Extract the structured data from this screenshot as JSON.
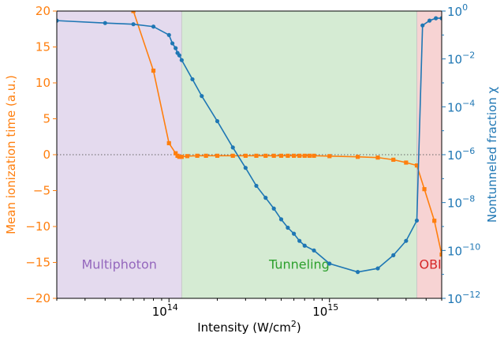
{
  "chart_data": {
    "type": "line",
    "xlabel": "Intensity (W/cm²)",
    "ylabel_left": "Mean ionization time (a.u.)",
    "ylabel_right": "Nontunneled fraction χ",
    "x_scale": "log",
    "xlim": [
      20000000000000.0,
      5000000000000000.0
    ],
    "x_ticks": [
      {
        "value": 100000000000000.0,
        "label": "10",
        "exp": "14"
      },
      {
        "value": 1000000000000000.0,
        "label": "10",
        "exp": "15"
      }
    ],
    "ylim_left": [
      -20,
      20
    ],
    "y_ticks_left": [
      "−20",
      "−15",
      "−10",
      "−5",
      "0",
      "5",
      "10",
      "15",
      "20"
    ],
    "y_tick_values_left": [
      -20,
      -15,
      -10,
      -5,
      0,
      5,
      10,
      15,
      20
    ],
    "ylim_right_log10": [
      -12,
      0
    ],
    "y_ticks_right": [
      {
        "log10": 0,
        "label": "10",
        "exp": "0"
      },
      {
        "log10": -2,
        "label": "10",
        "exp": "−2"
      },
      {
        "log10": -4,
        "label": "10",
        "exp": "−4"
      },
      {
        "log10": -6,
        "label": "10",
        "exp": "−6"
      },
      {
        "log10": -8,
        "label": "10",
        "exp": "−8"
      },
      {
        "log10": -10,
        "label": "10",
        "exp": "−10"
      },
      {
        "log10": -12,
        "label": "10",
        "exp": "−12"
      }
    ],
    "regions": [
      {
        "label": "Multiphoton",
        "from": 20000000000000.0,
        "to": 120000000000000.0,
        "fill": "#e4daee",
        "text_color": "#9467bd"
      },
      {
        "label": "Tunneling",
        "from": 120000000000000.0,
        "to": 3500000000000000.0,
        "fill": "#d5ebd3",
        "text_color": "#2ca02c"
      },
      {
        "label": "OBI",
        "from": 3500000000000000.0,
        "to": 5000000000000000.0,
        "fill": "#f7d3d3",
        "text_color": "#d62728"
      }
    ],
    "zero_line": true,
    "series": [
      {
        "axis": "left",
        "color": "#ff7f0e",
        "marker": "square",
        "x": [
          60000000000000.0,
          80000000000000.0,
          100000000000000.0,
          110000000000000.0,
          113000000000000.0,
          116000000000000.0,
          120000000000000.0,
          130000000000000.0,
          150000000000000.0,
          170000000000000.0,
          200000000000000.0,
          250000000000000.0,
          300000000000000.0,
          350000000000000.0,
          400000000000000.0,
          450000000000000.0,
          500000000000000.0,
          550000000000000.0,
          600000000000000.0,
          650000000000000.0,
          700000000000000.0,
          750000000000000.0,
          800000000000000.0,
          1000000000000000.0,
          1500000000000000.0,
          2000000000000000.0,
          2500000000000000.0,
          3000000000000000.0,
          3500000000000000.0,
          3900000000000000.0,
          4500000000000000.0,
          5000000000000000.0
        ],
        "y": [
          20.0,
          11.7,
          1.6,
          0.2,
          -0.15,
          -0.3,
          -0.3,
          -0.2,
          -0.15,
          -0.15,
          -0.15,
          -0.15,
          -0.15,
          -0.15,
          -0.15,
          -0.15,
          -0.15,
          -0.15,
          -0.15,
          -0.15,
          -0.15,
          -0.15,
          -0.15,
          -0.2,
          -0.3,
          -0.4,
          -0.7,
          -1.1,
          -1.5,
          -4.8,
          -9.2,
          -13.9
        ]
      },
      {
        "axis": "right",
        "color": "#1f77b4",
        "marker": "circle",
        "x": [
          20000000000000.0,
          40000000000000.0,
          60000000000000.0,
          80000000000000.0,
          100000000000000.0,
          105000000000000.0,
          110000000000000.0,
          113000000000000.0,
          116000000000000.0,
          120000000000000.0,
          140000000000000.0,
          160000000000000.0,
          200000000000000.0,
          250000000000000.0,
          300000000000000.0,
          350000000000000.0,
          400000000000000.0,
          450000000000000.0,
          500000000000000.0,
          550000000000000.0,
          600000000000000.0,
          650000000000000.0,
          700000000000000.0,
          800000000000000.0,
          1000000000000000.0,
          1500000000000000.0,
          2000000000000000.0,
          2500000000000000.0,
          3000000000000000.0,
          3500000000000000.0,
          3800000000000000.0,
          4200000000000000.0,
          4600000000000000.0,
          5000000000000000.0
        ],
        "log10_y": [
          -0.4,
          -0.5,
          -0.55,
          -0.65,
          -1.0,
          -1.35,
          -1.55,
          -1.75,
          -1.85,
          -2.05,
          -2.85,
          -3.55,
          -4.6,
          -5.7,
          -6.55,
          -7.3,
          -7.8,
          -8.25,
          -8.7,
          -9.05,
          -9.3,
          -9.6,
          -9.8,
          -10.0,
          -10.55,
          -10.9,
          -10.75,
          -10.2,
          -9.6,
          -8.75,
          -0.6,
          -0.4,
          -0.3,
          -0.3
        ]
      }
    ]
  }
}
